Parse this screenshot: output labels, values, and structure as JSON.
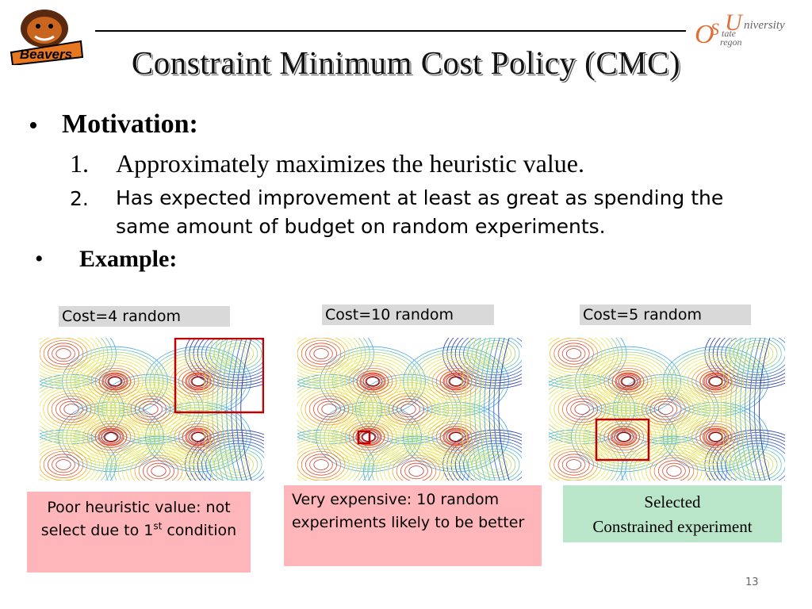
{
  "header": {
    "title": "Constraint Minimum Cost Policy (CMC)",
    "logo_left_text": "Beavers",
    "logo_right": {
      "o": "O",
      "s": "S",
      "u": "U",
      "niversity": "niversity",
      "tate": "tate",
      "regon": "regon"
    }
  },
  "body": {
    "bullet1": {
      "dot": "•",
      "label": "Motivation:"
    },
    "item1": {
      "num": "1.",
      "text": "Approximately maximizes the heuristic value."
    },
    "item2": {
      "num": "2.",
      "text": "Has expected improvement at least as great as spending the same amount of budget on random experiments."
    },
    "bullet2": {
      "dot": "•",
      "label": "Example:"
    }
  },
  "panels": [
    {
      "cost_label": "Cost=4 random",
      "note": "Poor heuristic value: not select due to 1",
      "note_sup": "st",
      "note_tail": "condition"
    },
    {
      "cost_label": "Cost=10 random",
      "note": "Very expensive: 10 random experiments likely to be better"
    },
    {
      "cost_label": "Cost=5 random",
      "note_line1": "Selected",
      "note_line2": "Constrained experiment"
    }
  ],
  "colors": {
    "highlight_box": "#c00000",
    "pink_note": "#ffb6bb",
    "green_note": "#b9e6c9",
    "label_bg": "#d9d9d9"
  },
  "footer": {
    "page_number": "13"
  }
}
